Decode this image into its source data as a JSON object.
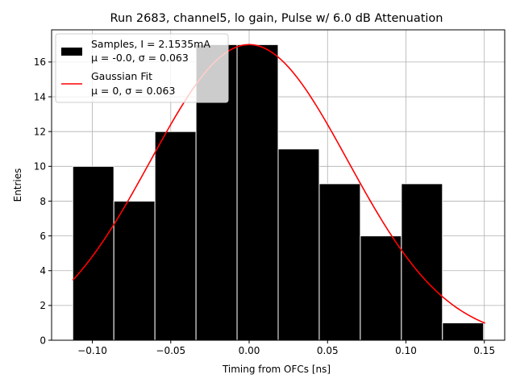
{
  "chart_data": {
    "type": "bar",
    "title": "Run 2683, channel5, lo gain, Pulse w/ 6.0 dB Attenuation",
    "xlabel": "Timing from OFCs [ns]",
    "ylabel": "Entries",
    "xlim": [
      -0.126,
      0.163
    ],
    "ylim": [
      0,
      17.85
    ],
    "xticks": [
      -0.1,
      -0.05,
      0.0,
      0.05,
      0.1,
      0.15
    ],
    "xtick_labels": [
      "−0.10",
      "−0.05",
      "0.00",
      "0.05",
      "0.10",
      "0.15"
    ],
    "yticks": [
      0,
      2,
      4,
      6,
      8,
      10,
      12,
      14,
      16
    ],
    "yticks_labels": [
      "0",
      "2",
      "4",
      "6",
      "8",
      "10",
      "12",
      "14",
      "16"
    ],
    "grid": true,
    "legend_position": "top-left",
    "histogram": {
      "bin_edges": [
        -0.1125,
        -0.0863,
        -0.0601,
        -0.0339,
        -0.0077,
        0.0185,
        0.0447,
        0.0709,
        0.0971,
        0.1233,
        0.1495
      ],
      "counts": [
        10,
        8,
        12,
        17,
        17,
        11,
        9,
        6,
        9,
        1
      ],
      "color": "#000000",
      "edgecolor": "#ffffff"
    },
    "fit": {
      "mu": 0.0,
      "sigma": 0.063,
      "amplitude": 17.0,
      "x_range": [
        -0.1125,
        0.1505
      ],
      "color": "#ff0000"
    },
    "series": [
      {
        "name": "Samples, I = 2.1535mA",
        "detail": "μ = -0.0, σ = 0.063"
      },
      {
        "name": "Gaussian Fit",
        "detail": "μ = 0, σ = 0.063"
      }
    ]
  }
}
